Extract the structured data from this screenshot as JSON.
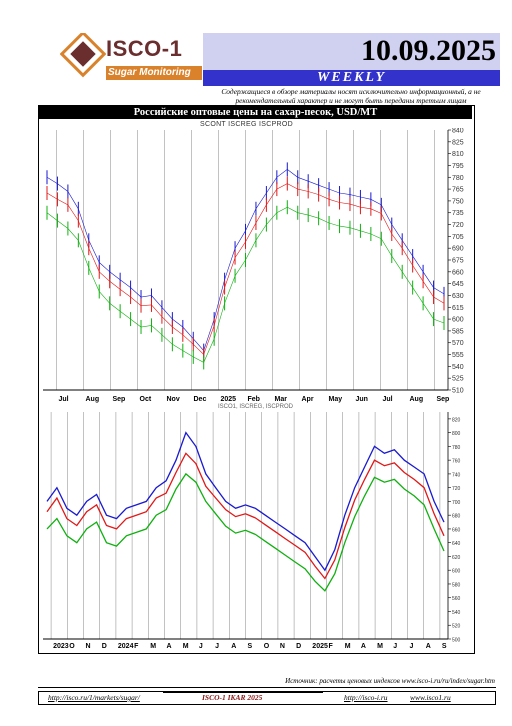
{
  "brand": {
    "name": "ISCO-1",
    "tagline": "Sugar Monitoring"
  },
  "header": {
    "date": "10.09.2025",
    "banner": "WEEKLY",
    "disclaimer": "Содержащиеся в обзоре материалы носят исключительно информационный, а не рекомендательный характер и не могут быть переданы третьим лицам"
  },
  "colors": {
    "blue": "#1a1ad0",
    "red": "#e01818",
    "green": "#10b010",
    "banner": "#3333cc",
    "header_band": "#d0d0f0"
  },
  "chart": {
    "title": "Российские оптовые цены на сахар-песок, USD/MT",
    "top_legend": "SCONT  ISCREG  ISCPROD",
    "bottom_legend": "ISCO1, ISCREG, ISCPROD"
  },
  "chart_data": [
    {
      "type": "line",
      "subtype": "high-low bars",
      "x_ticks": [
        "Jul",
        "Aug",
        "Sep",
        "Oct",
        "Nov",
        "Dec",
        "2025",
        "Feb",
        "Mar",
        "Apr",
        "May",
        "Jun",
        "Jul",
        "Aug",
        "Sep"
      ],
      "y_ticks": [
        "840",
        "825",
        "810",
        "795",
        "780",
        "765",
        "750",
        "735",
        "720",
        "705",
        "690",
        "675",
        "660",
        "645",
        "630",
        "615",
        "600",
        "585",
        "570",
        "555",
        "540",
        "525",
        "510"
      ],
      "ylim": [
        510,
        840
      ],
      "series": [
        {
          "name": "SCONT",
          "color": "#1a1ad0",
          "values": [
            780,
            772,
            762,
            740,
            700,
            672,
            660,
            650,
            640,
            628,
            630,
            615,
            600,
            590,
            575,
            560,
            600,
            650,
            690,
            712,
            740,
            760,
            780,
            790,
            780,
            775,
            770,
            765,
            760,
            758,
            755,
            752,
            745,
            720,
            700,
            680,
            660,
            640,
            632
          ]
        },
        {
          "name": "ISCREG",
          "color": "#e01818",
          "values": [
            760,
            752,
            745,
            725,
            690,
            660,
            648,
            638,
            628,
            617,
            618,
            603,
            590,
            580,
            568,
            555,
            592,
            640,
            678,
            698,
            722,
            745,
            765,
            772,
            765,
            762,
            758,
            752,
            748,
            746,
            742,
            740,
            734,
            708,
            690,
            668,
            648,
            628,
            620
          ]
        },
        {
          "name": "ISCPROD",
          "color": "#10b010",
          "values": [
            735,
            725,
            715,
            700,
            665,
            635,
            620,
            610,
            600,
            590,
            592,
            580,
            568,
            560,
            552,
            545,
            575,
            620,
            655,
            675,
            700,
            720,
            735,
            742,
            735,
            732,
            728,
            722,
            718,
            716,
            712,
            708,
            702,
            680,
            660,
            640,
            620,
            600,
            595
          ]
        }
      ]
    },
    {
      "type": "line",
      "x_ticks": [
        "2023",
        "O",
        "N",
        "D",
        "2024",
        "F",
        "M",
        "A",
        "M",
        "J",
        "J",
        "A",
        "S",
        "O",
        "N",
        "D",
        "2025",
        "F",
        "M",
        "A",
        "M",
        "J",
        "J",
        "A",
        "S"
      ],
      "y_ticks": [
        "820",
        "800",
        "780",
        "760",
        "740",
        "720",
        "700",
        "680",
        "660",
        "640",
        "620",
        "600",
        "580",
        "560",
        "540",
        "520",
        "500"
      ],
      "ylim": [
        500,
        830
      ],
      "series": [
        {
          "name": "ISCO1",
          "color": "#1a1ad0",
          "values": [
            700,
            720,
            690,
            680,
            700,
            710,
            680,
            675,
            690,
            695,
            700,
            720,
            730,
            760,
            800,
            780,
            740,
            720,
            700,
            690,
            695,
            690,
            680,
            670,
            660,
            650,
            640,
            620,
            600,
            630,
            680,
            720,
            750,
            780,
            770,
            775,
            760,
            750,
            740,
            700,
            670
          ]
        },
        {
          "name": "ISCREG",
          "color": "#e01818",
          "values": [
            685,
            705,
            675,
            665,
            685,
            695,
            665,
            660,
            675,
            680,
            685,
            705,
            712,
            742,
            770,
            755,
            722,
            705,
            688,
            678,
            682,
            676,
            666,
            656,
            646,
            636,
            626,
            606,
            588,
            615,
            662,
            702,
            732,
            760,
            752,
            756,
            742,
            732,
            720,
            682,
            650
          ]
        },
        {
          "name": "ISCPROD",
          "color": "#10b010",
          "values": [
            660,
            675,
            650,
            640,
            660,
            670,
            640,
            635,
            650,
            655,
            660,
            680,
            688,
            718,
            740,
            728,
            700,
            682,
            664,
            654,
            658,
            652,
            642,
            632,
            622,
            612,
            602,
            584,
            570,
            595,
            640,
            678,
            708,
            735,
            728,
            732,
            718,
            708,
            695,
            660,
            628
          ]
        }
      ]
    }
  ],
  "footer": {
    "source": "Источник: расчеты ценовых индексов www.isco-i.ru/ru/index/sugar.htm",
    "link1": "http://isco.ru/1/markets/sugar/",
    "copyright": "ISCO-1 IKAR 2025",
    "link2": "http://isco-i.ru",
    "link3": "www.isco1.ru"
  }
}
